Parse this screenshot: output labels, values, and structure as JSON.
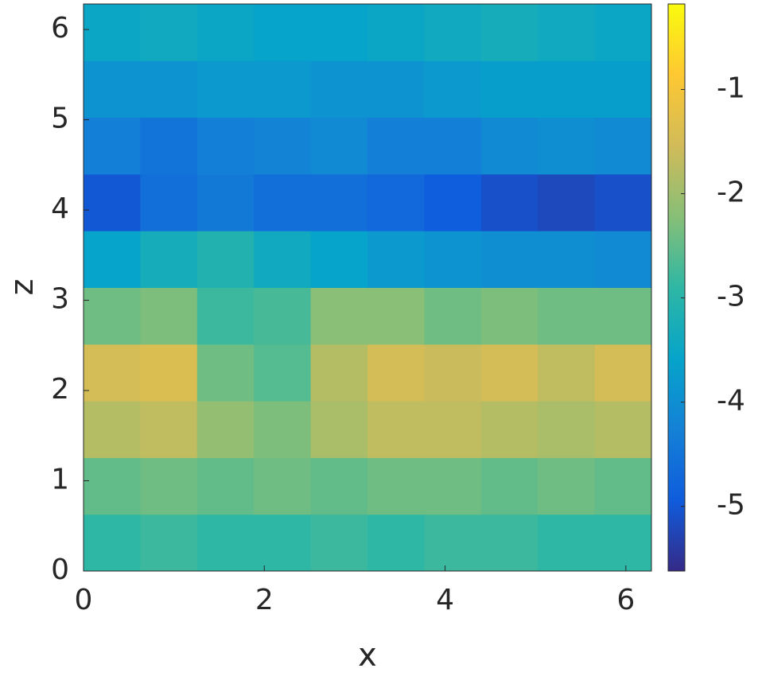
{
  "chart_data": {
    "type": "heatmap",
    "xlabel": "x",
    "ylabel": "z",
    "xlim": [
      0,
      6.283
    ],
    "ylim": [
      0,
      6.283
    ],
    "xticks": [
      0,
      2,
      4,
      6
    ],
    "yticks": [
      0,
      1,
      2,
      3,
      4,
      5,
      6
    ],
    "clim": [
      -5.62,
      -0.18
    ],
    "cticks": [
      -5,
      -4,
      -3,
      -2,
      -1
    ],
    "colormap": [
      "#352a87",
      "#0f5cdd",
      "#1481d6",
      "#06a4ca",
      "#2eb7a4",
      "#87bf77",
      "#d1bb59",
      "#fec832",
      "#f9fb0e"
    ],
    "values": [
      [
        -2.9,
        -2.8,
        -2.9,
        -2.9,
        -2.8,
        -2.9,
        -2.8,
        -2.8,
        -2.9,
        -2.9
      ],
      [
        -2.5,
        -2.4,
        -2.5,
        -2.4,
        -2.5,
        -2.4,
        -2.4,
        -2.5,
        -2.4,
        -2.5
      ],
      [
        -1.8,
        -1.7,
        -2.1,
        -2.3,
        -1.9,
        -1.7,
        -1.7,
        -1.8,
        -1.9,
        -1.8
      ],
      [
        -1.5,
        -1.4,
        -2.4,
        -2.6,
        -1.8,
        -1.5,
        -1.6,
        -1.5,
        -1.7,
        -1.5
      ],
      [
        -2.4,
        -2.3,
        -2.8,
        -2.7,
        -2.2,
        -2.2,
        -2.4,
        -2.3,
        -2.4,
        -2.4
      ],
      [
        -3.6,
        -3.3,
        -3.1,
        -3.4,
        -3.6,
        -3.8,
        -3.9,
        -4.0,
        -4.0,
        -4.1
      ],
      [
        -5.0,
        -4.6,
        -4.4,
        -4.6,
        -4.6,
        -4.7,
        -4.9,
        -5.1,
        -5.2,
        -5.1
      ],
      [
        -4.3,
        -4.5,
        -4.3,
        -4.2,
        -4.1,
        -4.3,
        -4.3,
        -4.1,
        -4.0,
        -4.1
      ],
      [
        -3.9,
        -3.9,
        -3.8,
        -3.8,
        -3.9,
        -3.9,
        -3.8,
        -3.7,
        -3.7,
        -3.7
      ],
      [
        -3.5,
        -3.4,
        -3.5,
        -3.6,
        -3.6,
        -3.5,
        -3.4,
        -3.3,
        -3.4,
        -3.5
      ]
    ]
  }
}
